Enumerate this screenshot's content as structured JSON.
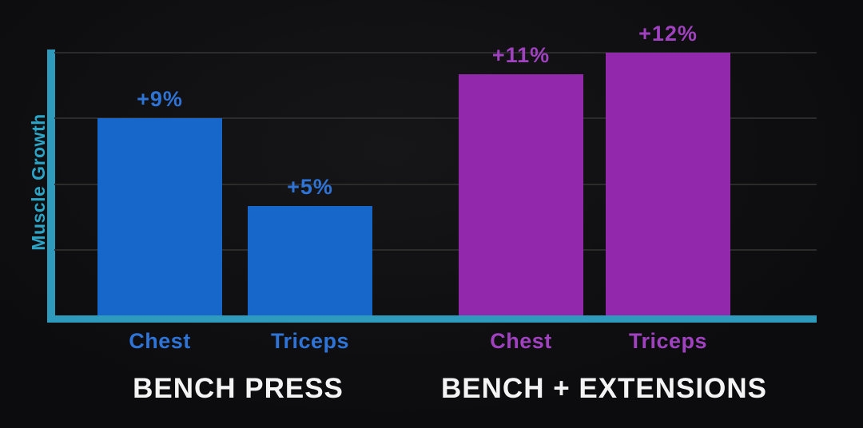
{
  "chart_data": {
    "type": "bar",
    "title": "",
    "ylabel": "Muscle Growth",
    "xlabel": "",
    "ylim": [
      0,
      12
    ],
    "grid": true,
    "gridlines": [
      3,
      6,
      9,
      12
    ],
    "legend_position": "none",
    "categories": [
      "Chest",
      "Triceps"
    ],
    "groups": [
      {
        "title": "BENCH PRESS",
        "bar_color": "#1766ca",
        "text_color": "#2e73d6",
        "bars": [
          {
            "category": "Chest",
            "value": 9,
            "label": "+9%"
          },
          {
            "category": "Triceps",
            "value": 5,
            "label": "+5%"
          }
        ]
      },
      {
        "title": "BENCH + EXTENSIONS",
        "bar_color": "#9229ad",
        "text_color": "#a041c0",
        "bars": [
          {
            "category": "Chest",
            "value": 11,
            "label": "+11%"
          },
          {
            "category": "Triceps",
            "value": 12,
            "label": "+12%"
          }
        ]
      }
    ],
    "colors": {
      "axis": "#2e9abc",
      "ylabel_text": "#2ca4c6",
      "grid": "#2b2b2b",
      "group_title_text": "#f4f4f4",
      "background": "#0c0c0e"
    }
  }
}
